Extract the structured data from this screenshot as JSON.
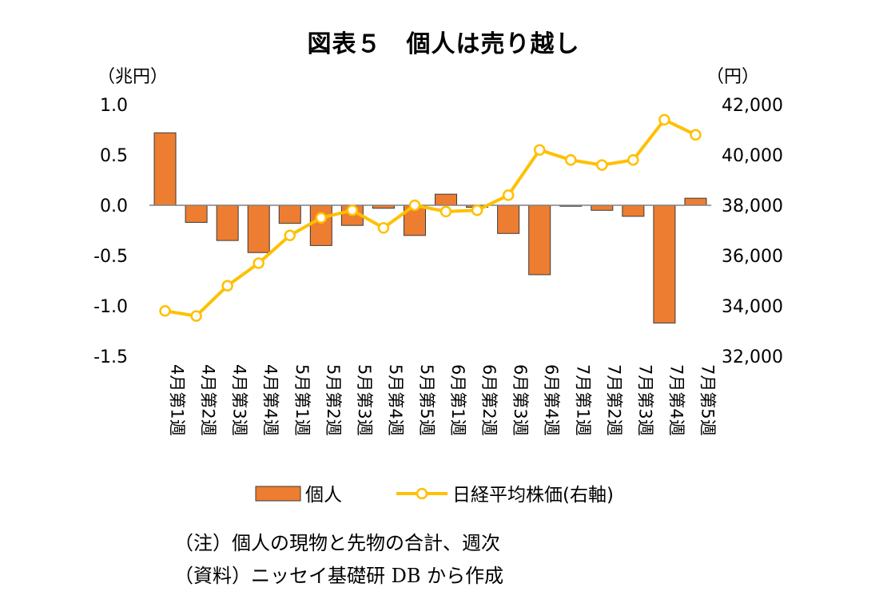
{
  "chart_data": {
    "type": "bar+line",
    "title": "図表５　個人は売り越し",
    "left_axis_unit": "（兆円）",
    "right_axis_unit": "（円）",
    "ylim_left": [
      -1.5,
      1.0
    ],
    "ylim_right": [
      32000,
      42000
    ],
    "yticks_left": [
      "1.0",
      "0.5",
      "0.0",
      "-0.5",
      "-1.0",
      "-1.5"
    ],
    "yticks_left_values": [
      1.0,
      0.5,
      0.0,
      -0.5,
      -1.0,
      -1.5
    ],
    "yticks_right": [
      "42,000",
      "40,000",
      "38,000",
      "36,000",
      "34,000",
      "32,000"
    ],
    "yticks_right_values": [
      42000,
      40000,
      38000,
      36000,
      34000,
      32000
    ],
    "categories": [
      "4月第1週",
      "4月第2週",
      "4月第3週",
      "4月第4週",
      "5月第1週",
      "5月第2週",
      "5月第3週",
      "5月第4週",
      "5月第5週",
      "6月第1週",
      "6月第2週",
      "6月第3週",
      "6月第4週",
      "7月第1週",
      "7月第2週",
      "7月第3週",
      "7月第4週",
      "7月第5週"
    ],
    "series": [
      {
        "name": "個人",
        "type": "bar",
        "axis": "left",
        "color": "#ED7D31",
        "values": [
          0.72,
          -0.17,
          -0.35,
          -0.47,
          -0.18,
          -0.4,
          -0.2,
          -0.03,
          -0.3,
          0.11,
          -0.02,
          -0.28,
          -0.69,
          -0.01,
          -0.05,
          -0.11,
          -1.17,
          0.07
        ]
      },
      {
        "name": "日経平均株価(右軸)",
        "type": "line",
        "axis": "right",
        "color": "#FFC000",
        "values": [
          33800,
          33600,
          34800,
          35700,
          36800,
          37500,
          37800,
          37100,
          38000,
          37750,
          37800,
          38400,
          40200,
          39800,
          39600,
          39800,
          41400,
          40800
        ]
      }
    ],
    "legend": "bottom",
    "grid": false
  },
  "notes": [
    "（注）個人の現物と先物の合計、週次",
    "（資料）ニッセイ基礎研 DB から作成"
  ]
}
